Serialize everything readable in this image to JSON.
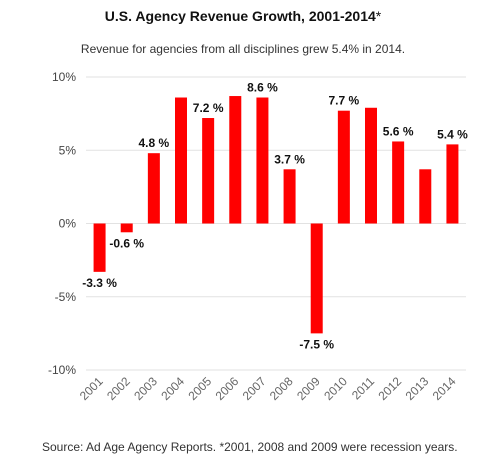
{
  "chart_data": {
    "type": "bar",
    "title": "U.S. Agency Revenue Growth, 2001-2014",
    "title_suffix": "*",
    "subtitle": "Revenue for agencies from all disciplines grew 5.4% in 2014.",
    "categories": [
      "2001",
      "2002",
      "2003",
      "2004",
      "2005",
      "2006",
      "2007",
      "2008",
      "2009",
      "2010",
      "2011",
      "2012",
      "2013",
      "2014"
    ],
    "values": [
      -3.3,
      -0.6,
      4.8,
      8.6,
      7.2,
      8.7,
      8.6,
      3.7,
      -7.5,
      7.7,
      7.9,
      5.6,
      3.7,
      5.4
    ],
    "data_labels": [
      {
        "index": 0,
        "text": "-3.3 %"
      },
      {
        "index": 1,
        "text": "-0.6 %"
      },
      {
        "index": 2,
        "text": "4.8 %"
      },
      {
        "index": 4,
        "text": "7.2 %"
      },
      {
        "index": 6,
        "text": "8.6 %"
      },
      {
        "index": 7,
        "text": "3.7 %"
      },
      {
        "index": 8,
        "text": "-7.5 %"
      },
      {
        "index": 9,
        "text": "7.7 %"
      },
      {
        "index": 11,
        "text": "5.6 %"
      },
      {
        "index": 13,
        "text": "5.4 %"
      }
    ],
    "ylim": [
      -10,
      10
    ],
    "yticks": [
      -10,
      -5,
      0,
      5,
      10
    ],
    "ytick_labels": [
      "-10%",
      "-5%",
      "0%",
      "5%",
      "10%"
    ],
    "xlabel": "",
    "ylabel": "",
    "grid": true,
    "bar_color": "#ff0000"
  },
  "source_note": "Source: Ad Age Agency Reports. *2001, 2008 and 2009 were recession years."
}
